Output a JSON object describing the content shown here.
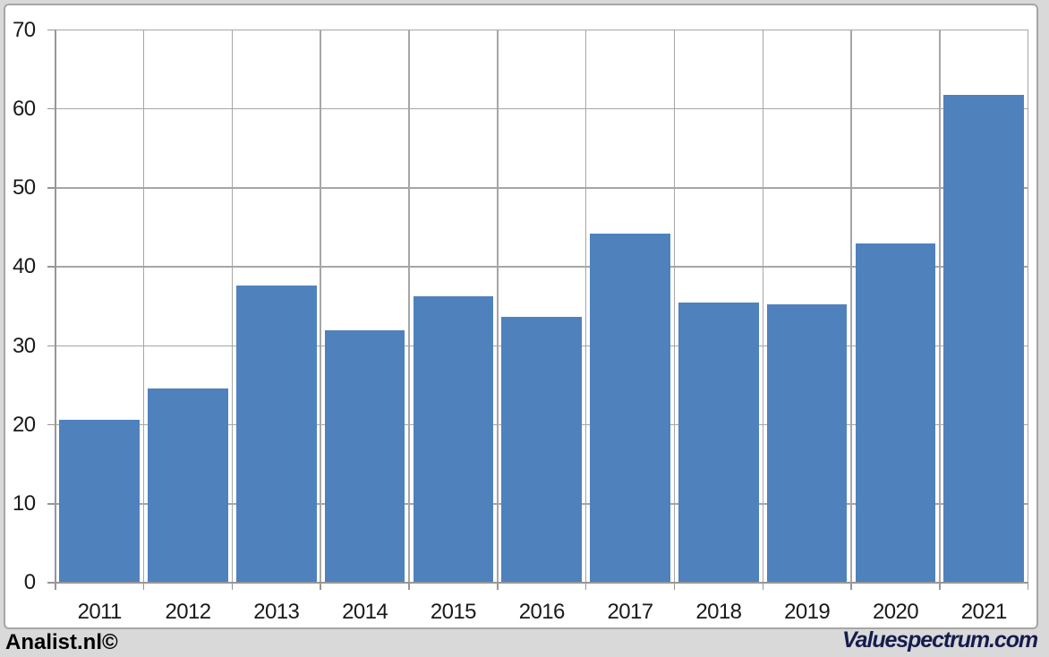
{
  "footer": {
    "left_text": "Analist.nl©",
    "right_text": "Valuespectrum.com",
    "left_color": "#000000",
    "right_color": "#151c4e"
  },
  "chart_data": {
    "type": "bar",
    "title": "",
    "xlabel": "",
    "ylabel": "",
    "categories": [
      "2011",
      "2012",
      "2013",
      "2014",
      "2015",
      "2016",
      "2017",
      "2018",
      "2019",
      "2020",
      "2021"
    ],
    "values": [
      20.6,
      24.6,
      37.6,
      32.0,
      36.3,
      33.7,
      44.2,
      35.5,
      35.3,
      43.0,
      61.8
    ],
    "ylim": [
      0,
      70
    ],
    "ytick_step": 10,
    "grid": true,
    "legend": false,
    "bar_color": "#4f81bd",
    "page_background": "#d9d9d9",
    "plot_background": "#ffffff",
    "gridline_color": "#a6a6a6",
    "axis_line_color": "#969696",
    "tick_label_color": "#1a1a1a",
    "panel_border_color": "#a6a6a6"
  }
}
